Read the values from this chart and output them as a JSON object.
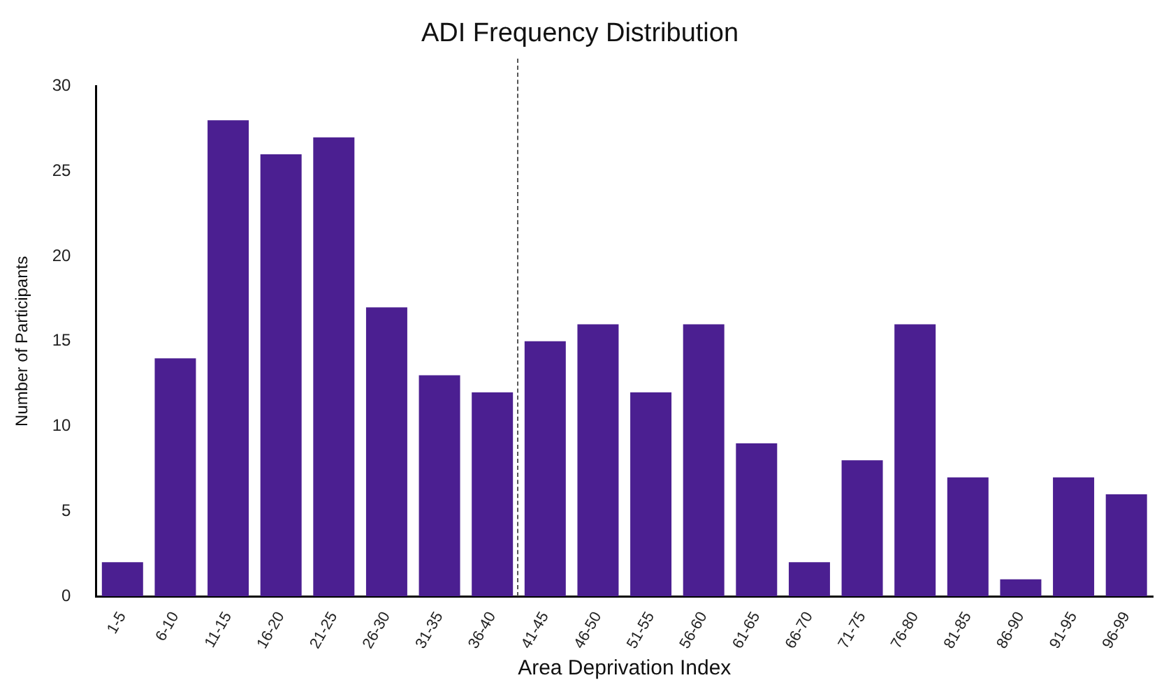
{
  "chart_data": {
    "type": "bar",
    "title": "ADI Frequency Distribution",
    "xlabel": "Area Deprivation Index",
    "ylabel": "Number of Participants",
    "categories": [
      "1-5",
      "6-10",
      "11-15",
      "16-20",
      "21-25",
      "26-30",
      "31-35",
      "36-40",
      "41-45",
      "46-50",
      "51-55",
      "56-60",
      "61-65",
      "66-70",
      "71-75",
      "76-80",
      "81-85",
      "86-90",
      "91-95",
      "96-99"
    ],
    "values": [
      2,
      14,
      28,
      26,
      27,
      17,
      13,
      12,
      15,
      16,
      12,
      16,
      9,
      2,
      8,
      16,
      7,
      1,
      7,
      6
    ],
    "color": "#4b1f91",
    "ylim": [
      0,
      30
    ],
    "yticks": [
      0,
      5,
      10,
      15,
      20,
      25,
      30
    ],
    "grid": false,
    "legend": false
  }
}
